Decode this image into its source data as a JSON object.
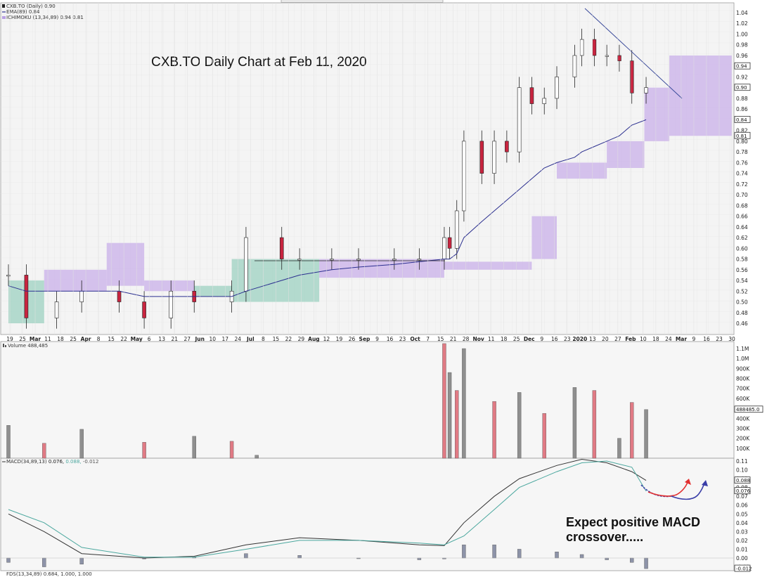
{
  "price_panel": {
    "legend": [
      "CXB.TO (Daily) 0.90",
      "EMA(89) 0.84",
      "ICHIMOKU (13,34,89) 0.94 0.81"
    ],
    "annotation": "CXB.TO Daily Chart at Feb 11, 2020",
    "y_ticks": [
      "1.04",
      "1.02",
      "1.00",
      "0.98",
      "0.96",
      "0.94",
      "0.92",
      "0.90",
      "0.88",
      "0.86",
      "0.84",
      "0.82",
      "0.80",
      "0.78",
      "0.76",
      "0.74",
      "0.72",
      "0.70",
      "0.68",
      "0.66",
      "0.64",
      "0.62",
      "0.60",
      "0.58",
      "0.56",
      "0.54",
      "0.52",
      "0.50",
      "0.48",
      "0.46"
    ],
    "value_boxes": [
      "0.94",
      "0.90",
      "0.84",
      "0.81"
    ]
  },
  "x_axis": {
    "labels": [
      "19",
      "25",
      "Mar",
      "11",
      "18",
      "25",
      "Apr",
      "8",
      "15",
      "22",
      "May",
      "6",
      "13",
      "21",
      "27",
      "Jun",
      "10",
      "17",
      "24",
      "Jul",
      "8",
      "15",
      "22",
      "29",
      "Aug",
      "12",
      "19",
      "26",
      "Sep",
      "9",
      "16",
      "23",
      "Oct",
      "7",
      "15",
      "21",
      "28",
      "Nov",
      "11",
      "18",
      "25",
      "Dec",
      "9",
      "16",
      "23",
      "2020",
      "13",
      "20",
      "27",
      "Feb",
      "10",
      "18",
      "24",
      "Mar",
      "9",
      "16",
      "23",
      "30"
    ],
    "bold": [
      "Mar",
      "Apr",
      "May",
      "Jun",
      "Jul",
      "Aug",
      "Sep",
      "Oct",
      "Nov",
      "Dec",
      "2020",
      "Feb",
      "Mar"
    ]
  },
  "volume_panel": {
    "legend": "Volume 488,485",
    "y_ticks": [
      "1.1M",
      "1.0M",
      "900K",
      "800K",
      "700K",
      "600K",
      "400K",
      "300K",
      "200K",
      "100K"
    ],
    "value_box": "488485.0"
  },
  "macd_panel": {
    "legend_name": "MACD(34,89,13)",
    "legend_values": [
      "0.076,",
      "0.088,",
      "-0.012"
    ],
    "y_ticks": [
      "0.11",
      "0.10",
      "0.09",
      "0.08",
      "0.07",
      "0.06",
      "0.05",
      "0.04",
      "0.03",
      "0.02",
      "0.01",
      "0.00",
      "-0.01"
    ],
    "value_boxes": [
      "0.088",
      "0.076",
      "-0.012"
    ],
    "annotation_line1": "Expect positive MACD",
    "annotation_line2": "crossover.....",
    "footer": "FDS(13,34,89) 0.684, 1.000, 1.000"
  },
  "chart_data": [
    {
      "type": "candlestick",
      "title": "CXB.TO Daily Chart at Feb 11, 2020",
      "ylim": [
        0.44,
        1.06
      ],
      "x": [
        "2019-02-19",
        "2019-03-01",
        "2019-03-18",
        "2019-04-01",
        "2019-04-22",
        "2019-05-06",
        "2019-05-21",
        "2019-06-03",
        "2019-06-24",
        "2019-07-02",
        "2019-07-22",
        "2019-08-01",
        "2019-08-19",
        "2019-09-03",
        "2019-09-23",
        "2019-10-07",
        "2019-10-21",
        "2019-10-24",
        "2019-10-28",
        "2019-11-01",
        "2019-11-11",
        "2019-11-18",
        "2019-11-25",
        "2019-12-02",
        "2019-12-09",
        "2019-12-16",
        "2019-12-23",
        "2020-01-02",
        "2020-01-06",
        "2020-01-13",
        "2020-01-20",
        "2020-01-27",
        "2020-02-03",
        "2020-02-11"
      ],
      "close": [
        0.55,
        0.47,
        0.5,
        0.52,
        0.5,
        0.47,
        0.52,
        0.5,
        0.52,
        0.62,
        0.58,
        0.58,
        0.58,
        0.58,
        0.58,
        0.58,
        0.62,
        0.6,
        0.67,
        0.8,
        0.74,
        0.8,
        0.78,
        0.9,
        0.87,
        0.88,
        0.92,
        0.96,
        0.99,
        0.96,
        0.96,
        0.95,
        0.89,
        0.9
      ],
      "ema89": [
        0.53,
        0.52,
        0.52,
        0.52,
        0.52,
        0.51,
        0.51,
        0.51,
        0.51,
        0.52,
        0.54,
        0.55,
        0.56,
        0.565,
        0.57,
        0.575,
        0.58,
        0.58,
        0.59,
        0.62,
        0.65,
        0.67,
        0.69,
        0.71,
        0.73,
        0.75,
        0.76,
        0.77,
        0.78,
        0.79,
        0.8,
        0.81,
        0.83,
        0.84
      ],
      "annotation": "downtrend line from 2020-01-06 high 1.05 to 0.88"
    },
    {
      "type": "bar",
      "title": "Volume 488,485",
      "ylim": [
        0,
        1150000
      ],
      "x": [
        "2019-02-19",
        "2019-03-11",
        "2019-04-01",
        "2019-05-06",
        "2019-06-03",
        "2019-06-24",
        "2019-07-08",
        "2019-10-21",
        "2019-10-24",
        "2019-10-28",
        "2019-11-01",
        "2019-11-18",
        "2019-12-02",
        "2019-12-16",
        "2020-01-02",
        "2020-01-13",
        "2020-01-27",
        "2020-02-03",
        "2020-02-11"
      ],
      "values": [
        330000,
        150000,
        290000,
        160000,
        220000,
        170000,
        30000,
        1150000,
        860000,
        680000,
        1100000,
        570000,
        660000,
        450000,
        710000,
        680000,
        200000,
        560000,
        488485
      ]
    },
    {
      "type": "line",
      "title": "MACD(34,89,13)",
      "ylim": [
        -0.015,
        0.115
      ],
      "x": [
        "2019-02-19",
        "2019-03-11",
        "2019-04-01",
        "2019-05-06",
        "2019-06-03",
        "2019-07-02",
        "2019-08-01",
        "2019-09-03",
        "2019-10-07",
        "2019-10-21",
        "2019-11-01",
        "2019-11-18",
        "2019-12-02",
        "2019-12-23",
        "2020-01-06",
        "2020-01-20",
        "2020-02-03",
        "2020-02-11"
      ],
      "series": [
        {
          "name": "MACD",
          "values": [
            0.05,
            0.03,
            0.005,
            0.0,
            0.002,
            0.015,
            0.023,
            0.02,
            0.015,
            0.014,
            0.04,
            0.07,
            0.09,
            0.105,
            0.112,
            0.108,
            0.098,
            0.088
          ]
        },
        {
          "name": "Signal",
          "values": [
            0.055,
            0.04,
            0.012,
            0.001,
            0.001,
            0.01,
            0.02,
            0.02,
            0.017,
            0.015,
            0.025,
            0.055,
            0.08,
            0.098,
            0.108,
            0.11,
            0.103,
            0.076
          ]
        },
        {
          "name": "Histogram",
          "values": [
            -0.005,
            -0.01,
            -0.007,
            -0.001,
            0.001,
            0.005,
            0.003,
            0.0,
            -0.002,
            -0.001,
            0.015,
            0.015,
            0.01,
            0.007,
            0.004,
            -0.002,
            -0.005,
            -0.012
          ]
        }
      ]
    }
  ]
}
